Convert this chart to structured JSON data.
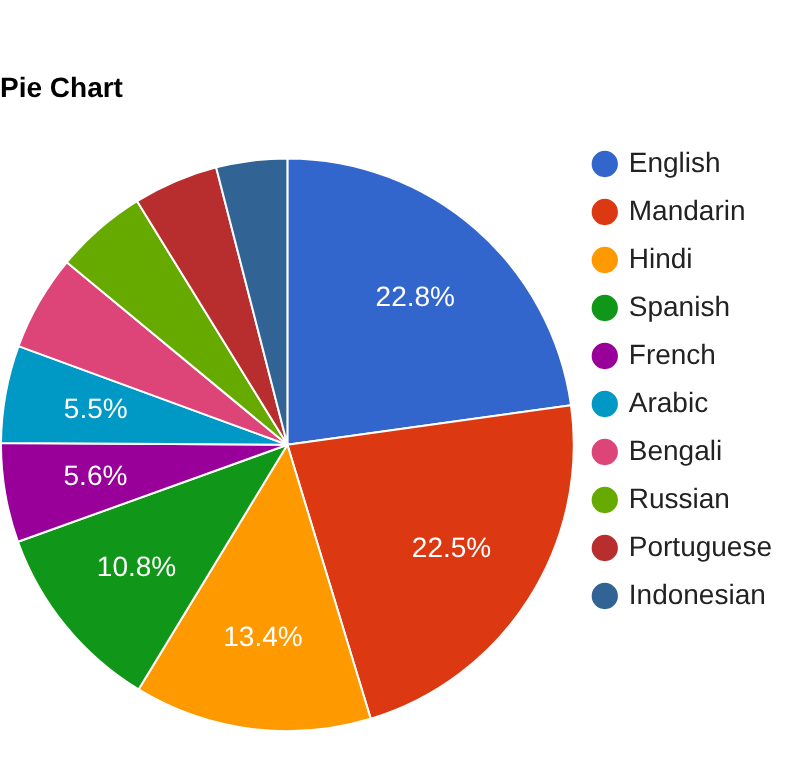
{
  "chart_data": {
    "type": "pie",
    "title": "Pie Chart",
    "categories": [
      "English",
      "Mandarin",
      "Hindi",
      "Spanish",
      "French",
      "Arabic",
      "Bengali",
      "Russian",
      "Portuguese",
      "Indonesian"
    ],
    "values": [
      22.8,
      22.5,
      13.4,
      10.8,
      5.6,
      5.5,
      5.4,
      5.2,
      4.8,
      4.0
    ],
    "value_labels": [
      "22.8%",
      "22.5%",
      "13.4%",
      "10.8%",
      "5.6%",
      "5.5%",
      null,
      null,
      null,
      null
    ],
    "colors": [
      "#3366cc",
      "#dc3912",
      "#ff9900",
      "#109618",
      "#990099",
      "#0099c6",
      "#dd4477",
      "#66aa00",
      "#b82e2e",
      "#316395"
    ],
    "legend": "right"
  }
}
